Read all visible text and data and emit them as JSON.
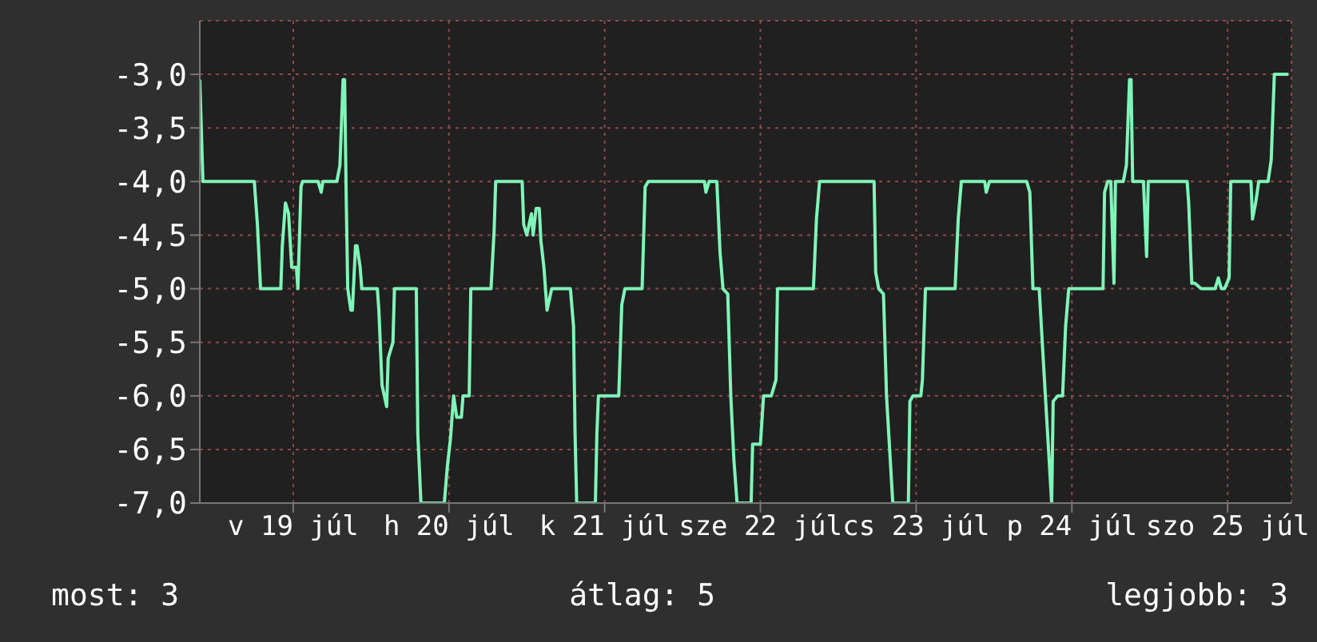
{
  "chart_data": {
    "type": "line",
    "annotations": [
      "most: 3",
      "átlag: 5",
      "legjobb: 3"
    ],
    "xlim": [
      "--07-18T21:36",
      "--07-25T21:50"
    ],
    "xticks": [
      {
        "value": "--07-19T12:00",
        "label": "v 19 júl"
      },
      {
        "value": "--07-20T12:00",
        "label": "h 20 júl"
      },
      {
        "value": "--07-21T12:00",
        "label": "k 21 júl"
      },
      {
        "value": "--07-22T12:00",
        "label": "sze 22 júl"
      },
      {
        "value": "--07-23T12:00",
        "label": "cs 23 júl"
      },
      {
        "value": "--07-24T12:00",
        "label": "p 24 júl"
      },
      {
        "value": "--07-25T12:00",
        "label": "szo 25 júl"
      }
    ],
    "ylim": [
      -7,
      -2.5
    ],
    "yticks": [
      {
        "value": -7,
        "label": "-7,0"
      },
      {
        "value": -6.5,
        "label": "-6,5"
      },
      {
        "value": -6,
        "label": "-6,0"
      },
      {
        "value": -5.5,
        "label": "-5,5"
      },
      {
        "value": -5,
        "label": "-5,0"
      },
      {
        "value": -4.5,
        "label": "-4,5"
      },
      {
        "value": -4,
        "label": "-4,0"
      },
      {
        "value": -3.5,
        "label": "-3,5"
      },
      {
        "value": -3,
        "label": "-3,0"
      }
    ],
    "grid": true,
    "legend": false,
    "marker": "none",
    "line_style": "solid",
    "series": [
      {
        "color": "#80f5b8",
        "x": [
          "--07-18T21:36",
          "--07-18T22:05",
          "--07-19T06:00",
          "--07-19T06:29",
          "--07-19T06:58",
          "--07-19T10:05",
          "--07-19T10:19",
          "--07-19T10:48",
          "--07-19T11:17",
          "--07-19T11:46",
          "--07-19T12:29",
          "--07-19T12:43",
          "--07-19T13:12",
          "--07-19T13:26",
          "--07-19T15:50",
          "--07-19T16:19",
          "--07-19T16:34",
          "--07-19T18:43",
          "--07-19T19:12",
          "--07-19T19:41",
          "--07-19T19:55",
          "--07-19T20:10",
          "--07-19T20:24",
          "--07-19T20:53",
          "--07-19T21:07",
          "--07-19T21:36",
          "--07-19T21:50",
          "--07-19T22:19",
          "--07-19T22:34",
          "--07-20T00:58",
          "--07-20T01:12",
          "--07-20T01:41",
          "--07-20T02:24",
          "--07-20T02:38",
          "--07-20T03:22",
          "--07-20T03:36",
          "--07-20T06:58",
          "--07-20T07:12",
          "--07-20T07:41",
          "--07-20T11:17",
          "--07-20T11:46",
          "--07-20T12:14",
          "--07-20T12:43",
          "--07-20T13:12",
          "--07-20T13:55",
          "--07-20T14:10",
          "--07-20T15:07",
          "--07-20T15:22",
          "--07-20T18:29",
          "--07-20T18:58",
          "--07-20T19:12",
          "--07-20T23:17",
          "--07-20T23:31",
          "--07-21T00:00",
          "--07-21T00:43",
          "--07-21T00:58",
          "--07-21T01:26",
          "--07-21T01:55",
          "--07-21T02:10",
          "--07-21T02:38",
          "--07-21T03:07",
          "--07-21T03:50",
          "--07-21T06:43",
          "--07-21T07:12",
          "--07-21T07:26",
          "--07-21T07:41",
          "--07-21T10:34",
          "--07-21T10:48",
          "--07-21T11:02",
          "--07-21T14:10",
          "--07-21T14:38",
          "--07-21T15:07",
          "--07-21T17:46",
          "--07-21T18:14",
          "--07-21T18:43",
          "--07-22T03:22",
          "--07-22T03:36",
          "--07-22T04:05",
          "--07-22T05:17",
          "--07-22T05:46",
          "--07-22T06:14",
          "--07-22T06:58",
          "--07-22T07:26",
          "--07-22T07:55",
          "--07-22T08:24",
          "--07-22T10:34",
          "--07-22T10:48",
          "--07-22T12:00",
          "--07-22T12:29",
          "--07-22T13:41",
          "--07-22T14:24",
          "--07-22T14:38",
          "--07-22T20:10",
          "--07-22T20:38",
          "--07-22T21:07",
          "--07-23T05:31",
          "--07-23T05:46",
          "--07-23T06:14",
          "--07-23T06:58",
          "--07-23T07:26",
          "--07-23T07:55",
          "--07-23T08:24",
          "--07-23T10:48",
          "--07-23T11:02",
          "--07-23T11:31",
          "--07-23T12:43",
          "--07-23T12:58",
          "--07-23T13:26",
          "--07-23T18:00",
          "--07-23T18:29",
          "--07-23T18:58",
          "--07-23T22:34",
          "--07-23T22:48",
          "--07-23T23:17",
          "--07-24T05:02",
          "--07-24T05:31",
          "--07-24T06:00",
          "--07-24T06:58",
          "--07-24T07:26",
          "--07-24T07:55",
          "--07-24T08:24",
          "--07-24T08:53",
          "--07-24T09:07",
          "--07-24T09:50",
          "--07-24T10:34",
          "--07-24T11:02",
          "--07-24T11:31",
          "--07-24T16:48",
          "--07-24T17:02",
          "--07-24T17:31",
          "--07-24T18:00",
          "--07-24T18:29",
          "--07-24T18:43",
          "--07-24T19:55",
          "--07-24T20:24",
          "--07-24T20:53",
          "--07-24T21:07",
          "--07-24T21:22",
          "--07-24T23:02",
          "--07-24T23:31",
          "--07-24T23:46",
          "--07-25T05:46",
          "--07-25T06:00",
          "--07-25T06:29",
          "--07-25T06:58",
          "--07-25T07:55",
          "--07-25T10:05",
          "--07-25T10:34",
          "--07-25T11:02",
          "--07-25T11:31",
          "--07-25T12:14",
          "--07-25T12:29",
          "--07-25T15:36",
          "--07-25T15:50",
          "--07-25T16:19",
          "--07-25T16:48",
          "--07-25T18:14",
          "--07-25T18:43",
          "--07-25T19:12",
          "--07-25T21:22"
        ],
        "values": [
          -3.05,
          -4,
          -4,
          -4.4,
          -5,
          -5,
          -4.6,
          -4.2,
          -4.3,
          -4.8,
          -4.8,
          -5,
          -4.05,
          -4,
          -4,
          -4.1,
          -4,
          -4,
          -3.85,
          -3.05,
          -3.05,
          -4.15,
          -5,
          -5.2,
          -5.2,
          -4.6,
          -4.6,
          -4.8,
          -5,
          -5,
          -5.2,
          -5.9,
          -6.1,
          -5.65,
          -5.5,
          -5,
          -5,
          -6.35,
          -7,
          -7,
          -6.65,
          -6.4,
          -6,
          -6.2,
          -6.2,
          -6,
          -6,
          -5,
          -5,
          -4.45,
          -4,
          -4,
          -4.4,
          -4.5,
          -4.3,
          -4.5,
          -4.25,
          -4.25,
          -4.55,
          -4.8,
          -5.2,
          -5,
          -5,
          -5.35,
          -6.35,
          -7,
          -7,
          -6.35,
          -6,
          -6,
          -5.15,
          -5,
          -5,
          -4.05,
          -4,
          -4,
          -4.1,
          -4,
          -4,
          -4.65,
          -5,
          -5.05,
          -6,
          -6.6,
          -7,
          -7,
          -6.45,
          -6.45,
          -6,
          -6,
          -5.85,
          -5,
          -5,
          -4.35,
          -4,
          -4,
          -4.85,
          -5,
          -5.05,
          -6,
          -6.5,
          -7,
          -7,
          -6.05,
          -6,
          -6,
          -5.85,
          -5,
          -5,
          -4.35,
          -4,
          -4,
          -4.1,
          -4,
          -4,
          -4.1,
          -5,
          -5,
          -5.5,
          -6,
          -6.5,
          -7,
          -6.05,
          -6,
          -6,
          -5.35,
          -5,
          -5,
          -4.1,
          -4,
          -4,
          -4.95,
          -4,
          -4,
          -3.85,
          -3.05,
          -3.05,
          -4,
          -4,
          -4.7,
          -4,
          -4,
          -4.2,
          -4.95,
          -4.95,
          -5,
          -5,
          -4.9,
          -5,
          -5,
          -4.9,
          -4,
          -4,
          -4.35,
          -4.2,
          -4,
          -4,
          -3.8,
          -3,
          -3
        ]
      }
    ]
  }
}
